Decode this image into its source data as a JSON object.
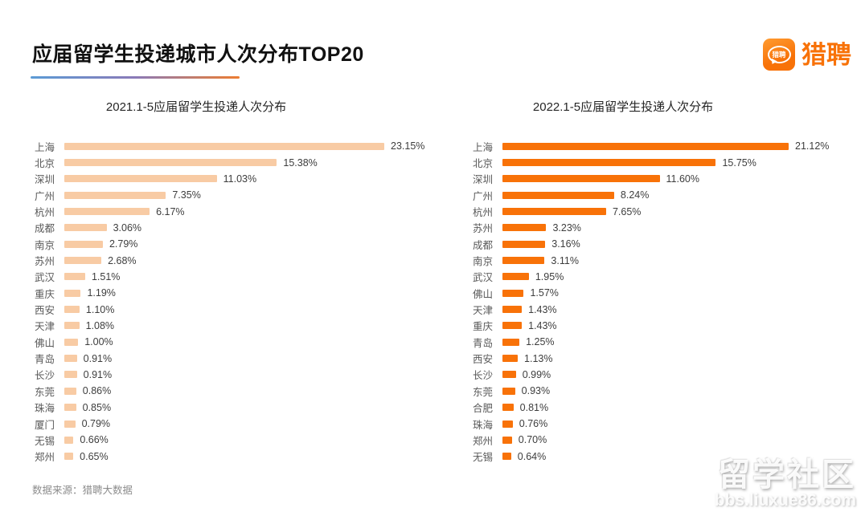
{
  "header": {
    "title": "应届留学生投递城市人次分布TOP20",
    "logo": {
      "bubble_text": "猎聘",
      "wordmark": "猎聘"
    }
  },
  "footer": {
    "source_note": "数据来源：猎聘大数据"
  },
  "watermark": {
    "line1": "留学社区",
    "line2": "bbs.liuxue86.com"
  },
  "colors": {
    "bar_2021": "#F8CBA4",
    "bar_2022": "#F87208",
    "brand_orange": "#F87208",
    "title_text": "#111111",
    "city_label": "#595959",
    "value_label": "#3d3d3d",
    "source_note": "#8C8C8C",
    "underline_gradient": [
      "#5B9BD5",
      "#8A7AB8",
      "#ED7D31"
    ]
  },
  "chart_data": [
    {
      "type": "bar",
      "orientation": "horizontal",
      "title": "2021.1-5应届留学生投递人次分布",
      "xlabel": "",
      "ylabel": "",
      "unit": "%",
      "xlim": [
        0,
        24
      ],
      "grid": false,
      "legend": false,
      "bar_color": "#F8CBA4",
      "categories": [
        "上海",
        "北京",
        "深圳",
        "广州",
        "杭州",
        "成都",
        "南京",
        "苏州",
        "武汉",
        "重庆",
        "西安",
        "天津",
        "佛山",
        "青岛",
        "长沙",
        "东莞",
        "珠海",
        "厦门",
        "无锡",
        "郑州"
      ],
      "values": [
        23.15,
        15.38,
        11.03,
        7.35,
        6.17,
        3.06,
        2.79,
        2.68,
        1.51,
        1.19,
        1.1,
        1.08,
        1.0,
        0.91,
        0.91,
        0.86,
        0.85,
        0.79,
        0.66,
        0.65
      ],
      "labels": [
        "23.15%",
        "15.38%",
        "11.03%",
        "7.35%",
        "6.17%",
        "3.06%",
        "2.79%",
        "2.68%",
        "1.51%",
        "1.19%",
        "1.10%",
        "1.08%",
        "1.00%",
        "0.91%",
        "0.91%",
        "0.86%",
        "0.85%",
        "0.79%",
        "0.66%",
        "0.65%"
      ]
    },
    {
      "type": "bar",
      "orientation": "horizontal",
      "title": "2022.1-5应届留学生投递人次分布",
      "xlabel": "",
      "ylabel": "",
      "unit": "%",
      "xlim": [
        0,
        22
      ],
      "grid": false,
      "legend": false,
      "bar_color": "#F87208",
      "categories": [
        "上海",
        "北京",
        "深圳",
        "广州",
        "杭州",
        "苏州",
        "成都",
        "南京",
        "武汉",
        "佛山",
        "天津",
        "重庆",
        "青岛",
        "西安",
        "长沙",
        "东莞",
        "合肥",
        "珠海",
        "郑州",
        "无锡"
      ],
      "values": [
        21.12,
        15.75,
        11.6,
        8.24,
        7.65,
        3.23,
        3.16,
        3.11,
        1.95,
        1.57,
        1.43,
        1.43,
        1.25,
        1.13,
        0.99,
        0.93,
        0.81,
        0.76,
        0.7,
        0.64
      ],
      "labels": [
        "21.12%",
        "15.75%",
        "11.60%",
        "8.24%",
        "7.65%",
        "3.23%",
        "3.16%",
        "3.11%",
        "1.95%",
        "1.57%",
        "1.43%",
        "1.43%",
        "1.25%",
        "1.13%",
        "0.99%",
        "0.93%",
        "0.81%",
        "0.76%",
        "0.70%",
        "0.64%"
      ]
    }
  ]
}
